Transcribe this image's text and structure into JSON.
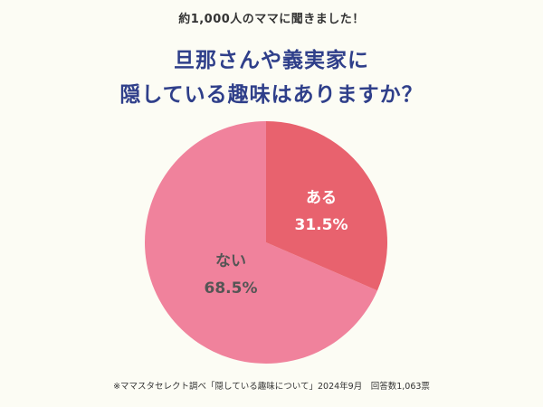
{
  "header": {
    "subtitle": "約1,000人のママに聞きました！",
    "title_line1": "旦那さんや義実家に",
    "title_line2": "隠している趣味はありますか？"
  },
  "footnote": "※ママスタセレクト調べ「隠している趣味について」2024年9月　回答数1,063票",
  "colors": {
    "background": "#fcfcf4",
    "title": "#2f3f8a",
    "slice_yes": "#e8626e",
    "slice_no": "#f0829c"
  },
  "slices": {
    "yes": {
      "label": "ある",
      "value_text": "31.5%"
    },
    "no": {
      "label": "ない",
      "value_text": "68.5%"
    }
  },
  "chart_data": {
    "type": "pie",
    "title": "旦那さんや義実家に隠している趣味はありますか？",
    "subtitle": "約1,000人のママに聞きました！",
    "categories": [
      "ある",
      "ない"
    ],
    "values": [
      31.5,
      68.5
    ],
    "unit": "%",
    "start_angle": "12 o'clock, clockwise",
    "colors": [
      "#e8626e",
      "#f0829c"
    ],
    "legend": "none (labels inside slices)",
    "source_note": "※ママスタセレクト調べ「隠している趣味について」2024年9月　回答数1,063票"
  }
}
